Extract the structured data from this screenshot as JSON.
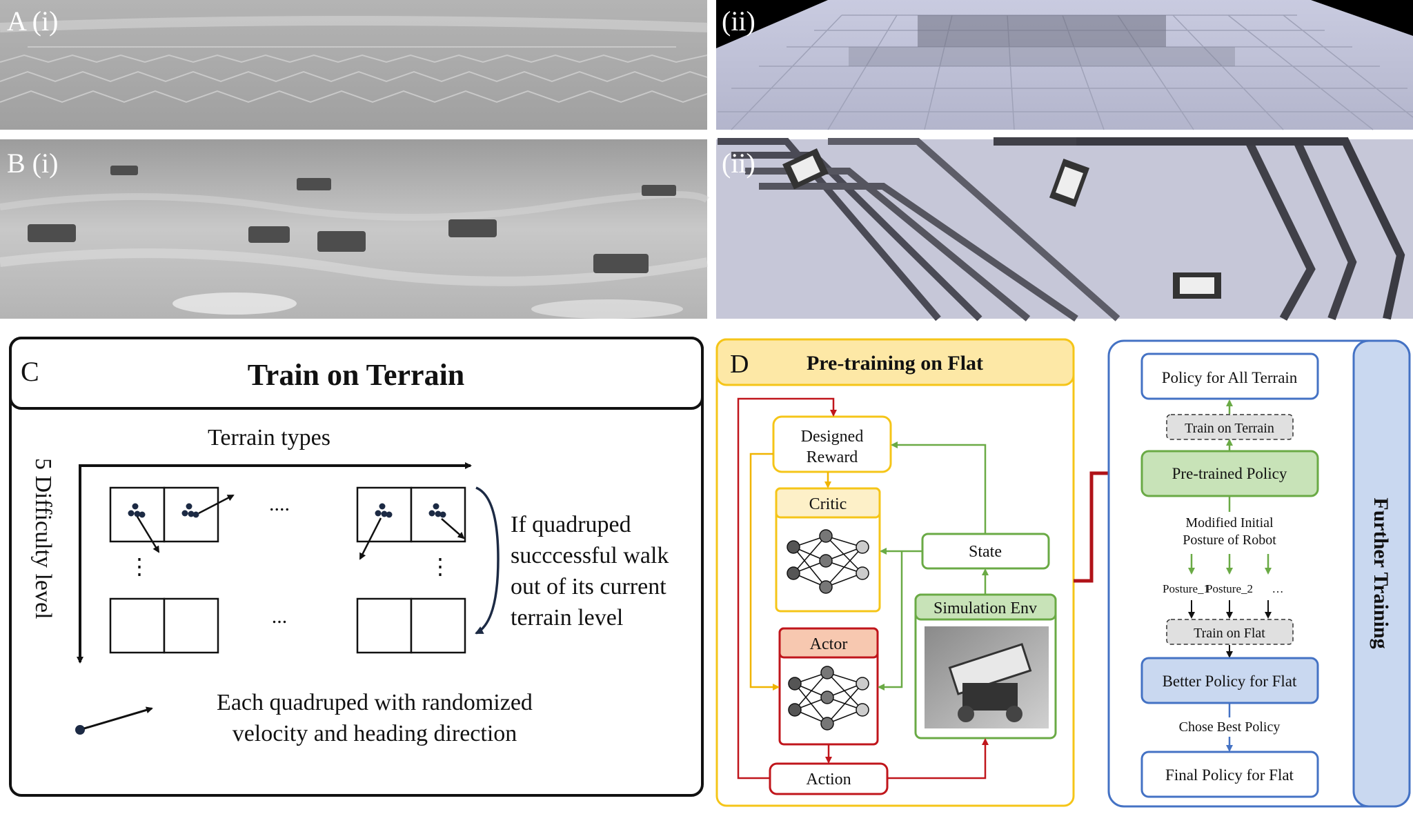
{
  "panels": {
    "a": {
      "label": "A (i)",
      "label_ii": "(ii)"
    },
    "b": {
      "label": "B (i)",
      "label_ii": "(ii)"
    }
  },
  "panel_c": {
    "letter": "C",
    "title": "Train on Terrain",
    "x_axis_label": "Terrain types",
    "y_axis_label": "5 Difficulty level",
    "h_ellipsis_top": "....",
    "h_ellipsis_bottom": "...",
    "v_ellipsis": "⋮",
    "promotion_note_lines": [
      "If quadruped",
      "succcessful walk",
      "out of its current",
      "terrain level"
    ],
    "legend_lines": [
      "Each quadruped with randomized",
      "velocity and heading direction"
    ]
  },
  "panel_d": {
    "letter": "D",
    "header": "Pre-training on Flat",
    "designed_reward": [
      "Designed",
      "Reward"
    ],
    "critic": "Critic",
    "actor": "Actor",
    "state": "State",
    "simulation_env": "Simulation Env",
    "action": "Action"
  },
  "further_training": {
    "side_label": "Further Training",
    "policy_all_terrain": "Policy for All Terrain",
    "train_on_terrain": "Train on Terrain",
    "pretrained_policy": "Pre-trained Policy",
    "modified_posture": [
      "Modified Initial",
      "Posture of Robot"
    ],
    "posture_1": "Posture_1",
    "posture_2": "Posture_2",
    "posture_more": "…",
    "train_on_flat": "Train on Flat",
    "better_policy": "Better Policy for Flat",
    "chose_best": "Chose Best Policy",
    "final_policy": "Final Policy for Flat"
  },
  "colors": {
    "yellow": "#f5c518",
    "red": "#c0151b",
    "green": "#6aaa45",
    "blue": "#4472c4",
    "green_fill": "#c8e3b8",
    "blue_fill": "#c9d8f0",
    "peach_fill": "#f7c8b0",
    "cream_fill": "#fdf0c8",
    "header_fill": "#fde8a6"
  }
}
